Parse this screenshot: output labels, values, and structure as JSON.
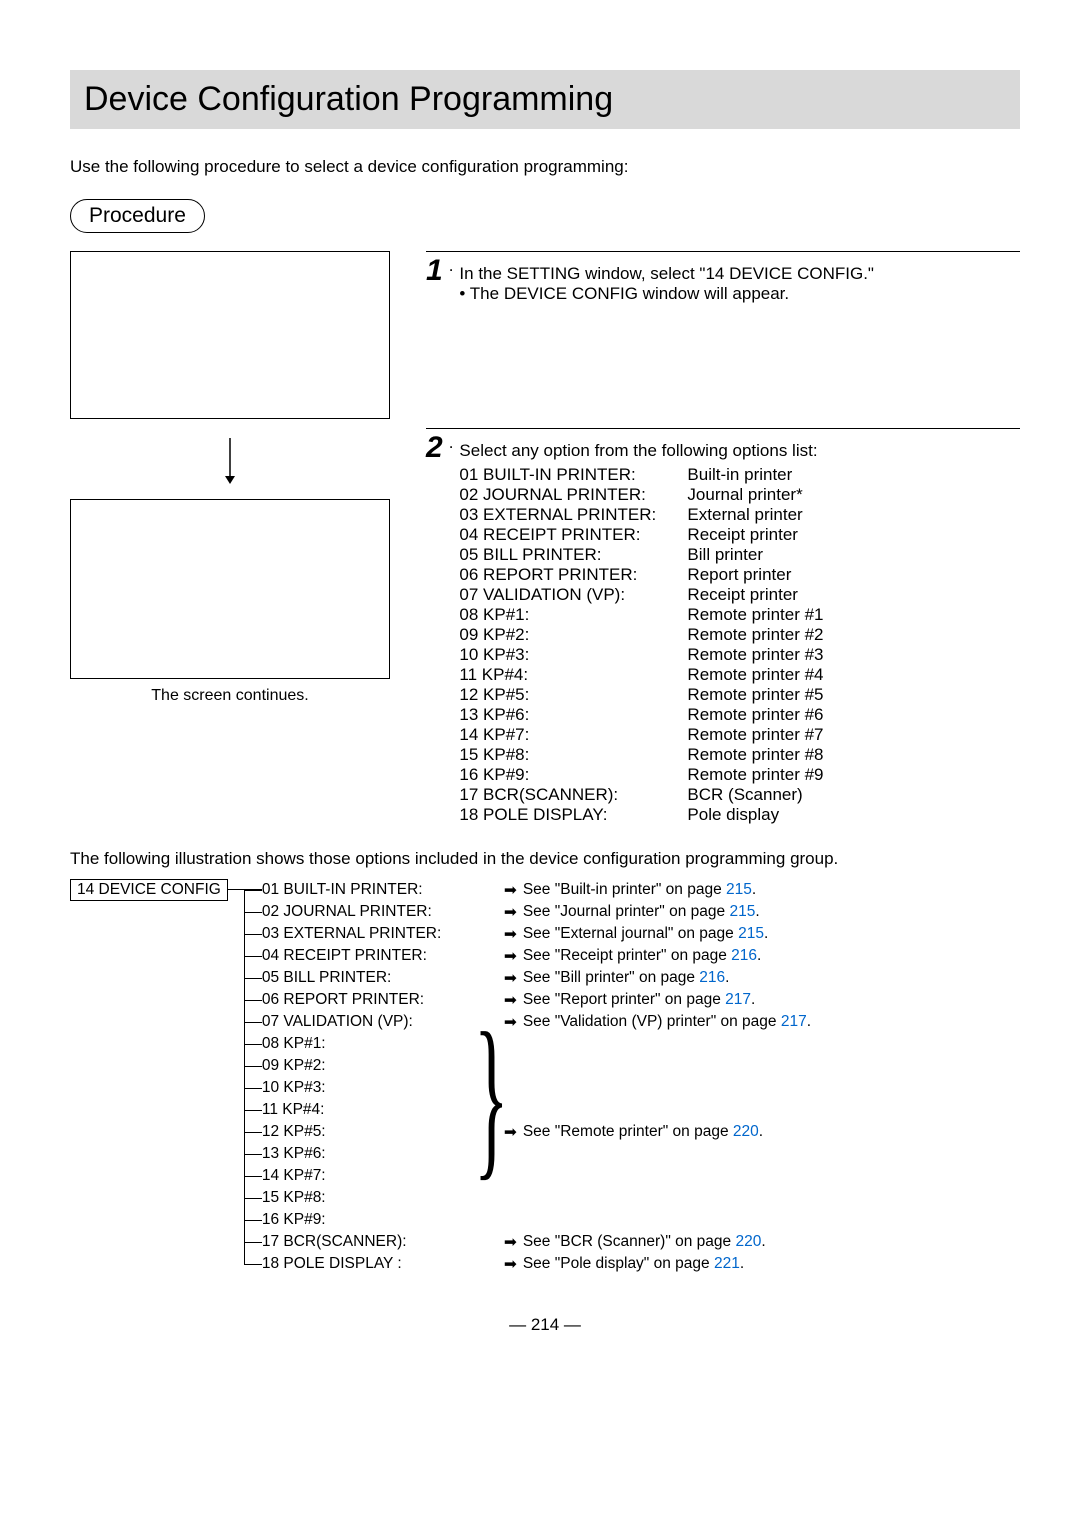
{
  "title": "Device Configuration Programming",
  "intro": "Use the following procedure to select a device configuration programming:",
  "procedure_label": "Procedure",
  "step1": {
    "num": "1",
    "text": "In the SETTING window, select \"14 DEVICE CONFIG.\"",
    "bullet": "The DEVICE CONFIG window will appear."
  },
  "step2": {
    "num": "2",
    "text": "Select any option from the following options list:",
    "options": [
      {
        "label": "01 BUILT-IN PRINTER:",
        "desc": "Built-in printer"
      },
      {
        "label": "02 JOURNAL PRINTER:",
        "desc": "Journal printer*"
      },
      {
        "label": "03 EXTERNAL PRINTER:",
        "desc": "External printer"
      },
      {
        "label": "04 RECEIPT PRINTER:",
        "desc": "Receipt printer"
      },
      {
        "label": "05 BILL PRINTER:",
        "desc": "Bill printer"
      },
      {
        "label": "06 REPORT PRINTER:",
        "desc": "Report printer"
      },
      {
        "label": "07 VALIDATION (VP):",
        "desc": "Receipt printer"
      },
      {
        "label": "08 KP#1:",
        "desc": "Remote printer #1"
      },
      {
        "label": "09 KP#2:",
        "desc": "Remote printer #2"
      },
      {
        "label": "10 KP#3:",
        "desc": "Remote printer #3"
      },
      {
        "label": "11 KP#4:",
        "desc": "Remote printer #4"
      },
      {
        "label": "12 KP#5:",
        "desc": "Remote printer #5"
      },
      {
        "label": "13 KP#6:",
        "desc": "Remote printer #6"
      },
      {
        "label": "14 KP#7:",
        "desc": "Remote printer #7"
      },
      {
        "label": "15 KP#8:",
        "desc": "Remote printer #8"
      },
      {
        "label": "16 KP#9:",
        "desc": "Remote printer #9"
      },
      {
        "label": "17 BCR(SCANNER):",
        "desc": "BCR (Scanner)"
      },
      {
        "label": "18 POLE DISPLAY:",
        "desc": "Pole display"
      }
    ]
  },
  "screen_continues": "The screen continues.",
  "group_note": "The following illustration shows those options included in the device configuration programming group.",
  "tree": {
    "root": "14 DEVICE CONFIG",
    "items_top": [
      {
        "label": "01 BUILT-IN PRINTER:",
        "ref": "See \"Built-in printer\" on page ",
        "page": "215",
        "tail": "."
      },
      {
        "label": "02 JOURNAL PRINTER:",
        "ref": "See \"Journal printer\" on page ",
        "page": "215",
        "tail": "."
      },
      {
        "label": "03 EXTERNAL PRINTER:",
        "ref": "See \"External journal\" on page ",
        "page": "215",
        "tail": "."
      },
      {
        "label": "04 RECEIPT PRINTER:",
        "ref": "See \"Receipt printer\" on page ",
        "page": "216",
        "tail": "."
      },
      {
        "label": "05 BILL PRINTER:",
        "ref": "See \"Bill printer\" on page ",
        "page": "216",
        "tail": "."
      },
      {
        "label": "06 REPORT PRINTER:",
        "ref": "See \"Report printer\" on page ",
        "page": "217",
        "tail": "."
      },
      {
        "label": "07 VALIDATION (VP):",
        "ref": "See \"Validation (VP) printer\" on page ",
        "page": "217",
        "tail": "."
      }
    ],
    "items_kp": [
      {
        "label": "08 KP#1:"
      },
      {
        "label": "09 KP#2:"
      },
      {
        "label": "10 KP#3:"
      },
      {
        "label": "11 KP#4:"
      },
      {
        "label": "12 KP#5:"
      },
      {
        "label": "13 KP#6:"
      },
      {
        "label": "14 KP#7:"
      },
      {
        "label": "15 KP#8:"
      },
      {
        "label": "16 KP#9:"
      }
    ],
    "kp_ref": {
      "ref": "See \"Remote printer\" on page ",
      "page": "220",
      "tail": "."
    },
    "items_bottom": [
      {
        "label": "17 BCR(SCANNER):",
        "ref": "See \"BCR (Scanner)\" on page ",
        "page": "220",
        "tail": "."
      },
      {
        "label": "18 POLE DISPLAY :",
        "ref": "See \"Pole display\" on page ",
        "page": "221",
        "tail": "."
      }
    ]
  },
  "page_num": "— 214 —",
  "colors": {
    "title_bg": "#d9d9d9",
    "link": "#0066cc"
  }
}
